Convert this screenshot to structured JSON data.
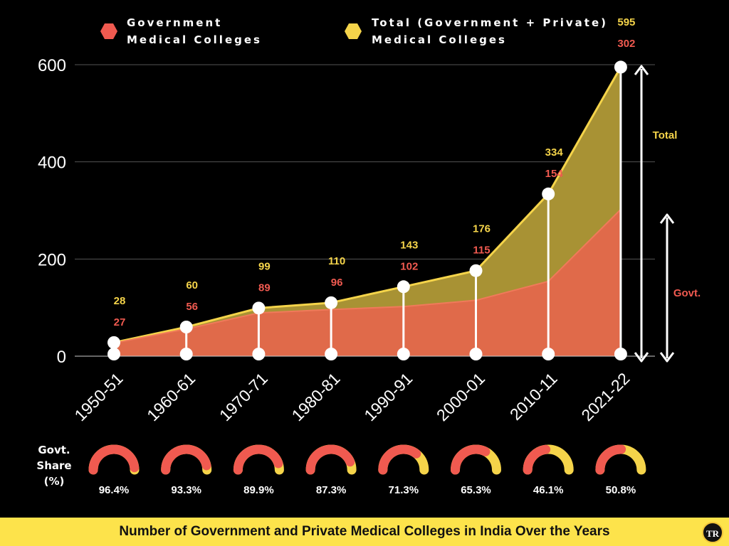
{
  "legend": {
    "govt_label": "Government\nMedical Colleges",
    "total_label": "Total (Government + Private)\nMedical Colleges"
  },
  "footer": {
    "title": "Number of Government and Private Medical Colleges in India Over the Years",
    "badge": "TR"
  },
  "share": {
    "title": "Govt.\nShare\n(%)"
  },
  "colors": {
    "govt": "#f05a50",
    "govt_area": "#e06a4a",
    "total": "#f5d44a",
    "total_area": "#a89234",
    "axis_text": "#ffffff"
  },
  "chart_data": {
    "type": "area",
    "categories": [
      "1950-51",
      "1960-61",
      "1970-71",
      "1980-81",
      "1990-91",
      "2000-01",
      "2010-11",
      "2021-22"
    ],
    "series": [
      {
        "name": "Total (Government + Private) Medical Colleges",
        "values": [
          28,
          60,
          99,
          110,
          143,
          176,
          334,
          595
        ]
      },
      {
        "name": "Government Medical Colleges",
        "values": [
          27,
          56,
          89,
          96,
          102,
          115,
          154,
          302
        ]
      }
    ],
    "yticks": [
      0,
      200,
      400,
      600
    ],
    "ylim": [
      0,
      600
    ],
    "gov_share": [
      "96.4%",
      "93.3%",
      "89.9%",
      "87.3%",
      "71.3%",
      "65.3%",
      "46.1%",
      "50.8%"
    ],
    "gov_share_values": [
      96.4,
      93.3,
      89.9,
      87.3,
      71.3,
      65.3,
      46.1,
      50.8
    ],
    "annotations": {
      "total": "Total",
      "govt": "Govt."
    },
    "grid": true
  }
}
